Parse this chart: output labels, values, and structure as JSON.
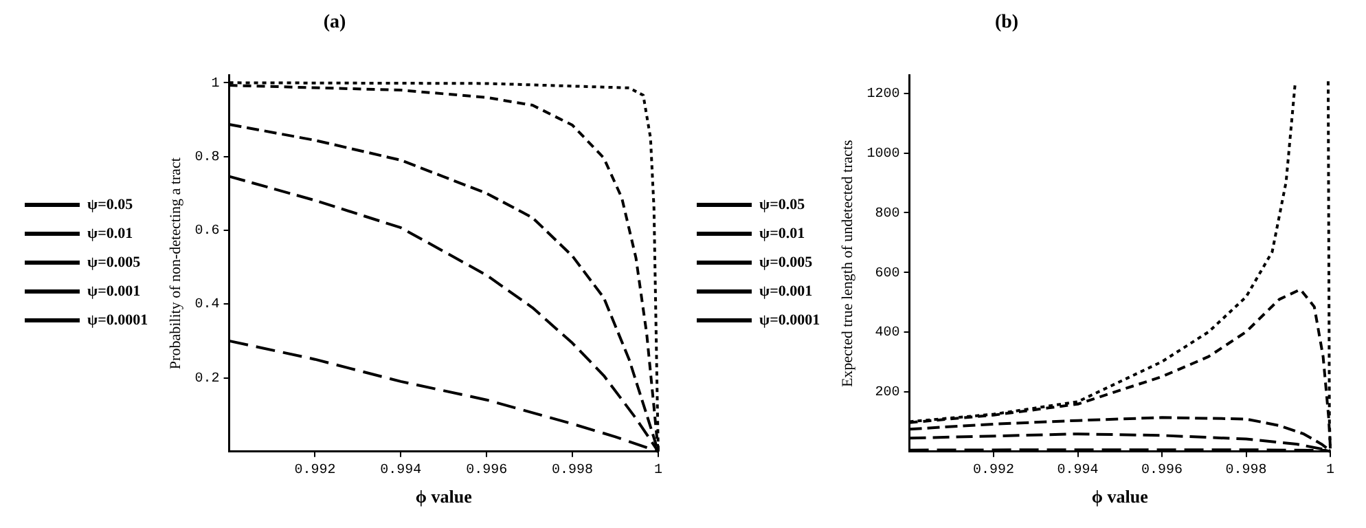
{
  "chart_data": [
    {
      "type": "line",
      "title": "(a)",
      "xlabel": "ϕ value",
      "ylabel": "Probability of non-detecting a tract",
      "xlim": [
        0.99,
        1.0
      ],
      "ylim": [
        0,
        1.02
      ],
      "xticks": [
        0.992,
        0.994,
        0.996,
        0.998,
        1
      ],
      "yticks": [
        0.2,
        0.4,
        0.6,
        0.8,
        1
      ],
      "grid": false,
      "legend": "left",
      "line_style": "dashed",
      "marker": "none",
      "series": [
        {
          "name": "ψ=0.05",
          "color": "#000000",
          "x": [
            0.99,
            0.992,
            0.994,
            0.996,
            0.998,
            0.999,
            1.0
          ],
          "values": [
            0.3,
            0.25,
            0.19,
            0.14,
            0.075,
            0.04,
            0
          ]
        },
        {
          "name": "ψ=0.01",
          "color": "#000000",
          "x": [
            0.99,
            0.992,
            0.994,
            0.996,
            0.99707,
            0.998,
            0.99873,
            0.99948,
            1.0
          ],
          "values": [
            0.746,
            0.681,
            0.607,
            0.478,
            0.39,
            0.294,
            0.206,
            0.09,
            0
          ]
        },
        {
          "name": "ψ=0.005",
          "color": "#000000",
          "x": [
            0.99,
            0.992,
            0.994,
            0.996,
            0.99707,
            0.998,
            0.99873,
            0.99932,
            0.99973,
            1.0
          ],
          "values": [
            0.887,
            0.844,
            0.79,
            0.7,
            0.634,
            0.53,
            0.417,
            0.25,
            0.1,
            0
          ]
        },
        {
          "name": "ψ=0.001",
          "color": "#000000",
          "x": [
            0.99,
            0.994,
            0.996,
            0.99707,
            0.998,
            0.99873,
            0.99915,
            0.99948,
            0.99973,
            0.9999,
            1.0
          ],
          "values": [
            0.993,
            0.98,
            0.96,
            0.939,
            0.885,
            0.796,
            0.688,
            0.525,
            0.32,
            0.12,
            0
          ]
        },
        {
          "name": "ψ=0.0001",
          "color": "#000000",
          "x": [
            0.99,
            0.996,
            0.99932,
            0.99965,
            0.99982,
            0.9999,
            0.99994,
            0.99998,
            1.0
          ],
          "values": [
            1.0,
            0.998,
            0.986,
            0.966,
            0.85,
            0.66,
            0.39,
            0.12,
            0
          ]
        }
      ]
    },
    {
      "type": "line",
      "title": "(b)",
      "xlabel": "ϕ value",
      "ylabel": "Expected true length of undetected tracts",
      "xlim": [
        0.99,
        1.0
      ],
      "ylim": [
        0,
        1260
      ],
      "xticks": [
        0.992,
        0.994,
        0.996,
        0.998,
        1
      ],
      "yticks": [
        200,
        400,
        600,
        800,
        1000,
        1200
      ],
      "grid": false,
      "legend": "left",
      "line_style": "dashed",
      "marker": "none",
      "series": [
        {
          "name": "ψ=0.05",
          "color": "#000000",
          "x": [
            0.99,
            0.994,
            0.998,
            0.9999,
            1.0
          ],
          "values": [
            5,
            6,
            6,
            4,
            0
          ]
        },
        {
          "name": "ψ=0.01",
          "color": "#000000",
          "x": [
            0.99,
            0.994,
            0.996,
            0.998,
            0.9992,
            1.0
          ],
          "values": [
            45,
            59,
            54,
            42,
            25,
            3
          ]
        },
        {
          "name": "ψ=0.005",
          "color": "#000000",
          "x": [
            0.99,
            0.992,
            0.994,
            0.996,
            0.998,
            0.99879,
            0.99937,
            0.99979,
            1.0
          ],
          "values": [
            75,
            92,
            104,
            114,
            109,
            87,
            59,
            25,
            3
          ]
        },
        {
          "name": "ψ=0.001",
          "color": "#000000",
          "x": [
            0.99,
            0.992,
            0.994,
            0.996,
            0.99711,
            0.998,
            0.99879,
            0.99929,
            0.99962,
            0.99983,
            0.99996,
            1.0
          ],
          "values": [
            97,
            122,
            159,
            251,
            318,
            401,
            510,
            543,
            485,
            318,
            117,
            17
          ]
        },
        {
          "name": "ψ=0.0001",
          "color": "#000000",
          "x": [
            0.99,
            0.992,
            0.994,
            0.996,
            0.99711,
            0.998,
            0.99862,
            0.99895,
            0.99917,
            0.9997,
            0.99995,
            0.99998,
            1.0
          ],
          "values": [
            100,
            125,
            167,
            301,
            401,
            518,
            669,
            903,
            1240,
            null,
            1240,
            100,
            10
          ]
        }
      ]
    }
  ]
}
